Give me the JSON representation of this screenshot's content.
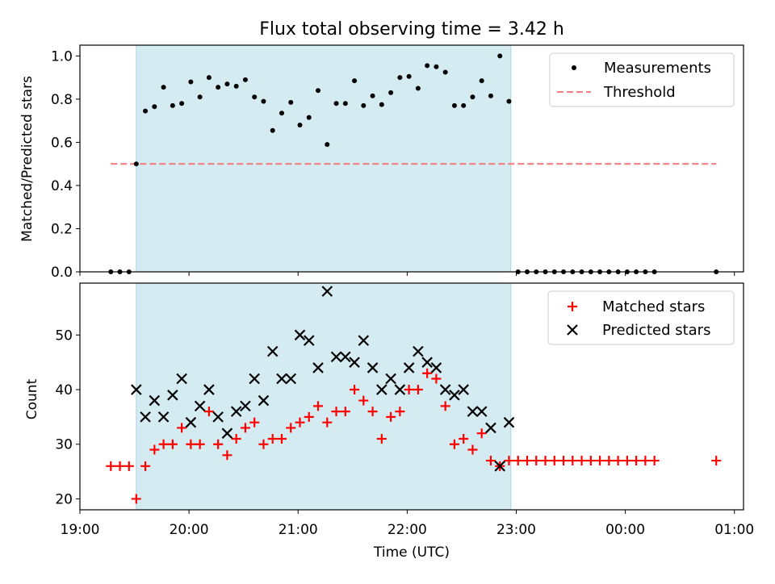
{
  "chart_data": [
    {
      "type": "scatter",
      "title": "Flux total observing time = 3.42 h",
      "xlabel": "",
      "ylabel": "Matched/Predicted stars",
      "xlim": [
        "19:00",
        "01:05"
      ],
      "ylim": [
        0,
        1.05
      ],
      "yticks": [
        "0.0",
        "0.2",
        "0.4",
        "0.6",
        "0.8",
        "1.0"
      ],
      "shaded_interval": {
        "start": "19:31",
        "end": "22:57",
        "color": "#d4ebf1"
      },
      "legend": {
        "position": "top-right",
        "entries": [
          "Measurements",
          "Threshold"
        ]
      },
      "threshold": {
        "name": "Threshold",
        "value": 0.5,
        "x_start": "19:17",
        "x_end": "00:50",
        "color": "#f08080",
        "style": "dashed"
      },
      "series": [
        {
          "name": "Measurements",
          "marker": "dot",
          "color": "#000000",
          "points": [
            [
              "19:17",
              0.0
            ],
            [
              "19:22",
              0.0
            ],
            [
              "19:27",
              0.0
            ],
            [
              "19:31",
              0.5
            ],
            [
              "19:36",
              0.745
            ],
            [
              "19:41",
              0.765
            ],
            [
              "19:46",
              0.855
            ],
            [
              "19:51",
              0.77
            ],
            [
              "19:56",
              0.78
            ],
            [
              "20:01",
              0.88
            ],
            [
              "20:06",
              0.81
            ],
            [
              "20:11",
              0.9
            ],
            [
              "20:16",
              0.855
            ],
            [
              "20:21",
              0.87
            ],
            [
              "20:26",
              0.86
            ],
            [
              "20:31",
              0.89
            ],
            [
              "20:36",
              0.81
            ],
            [
              "20:41",
              0.79
            ],
            [
              "20:46",
              0.655
            ],
            [
              "20:51",
              0.735
            ],
            [
              "20:56",
              0.785
            ],
            [
              "21:01",
              0.68
            ],
            [
              "21:06",
              0.715
            ],
            [
              "21:11",
              0.84
            ],
            [
              "21:16",
              0.59
            ],
            [
              "21:21",
              0.78
            ],
            [
              "21:26",
              0.78
            ],
            [
              "21:31",
              0.885
            ],
            [
              "21:36",
              0.77
            ],
            [
              "21:41",
              0.815
            ],
            [
              "21:46",
              0.775
            ],
            [
              "21:51",
              0.83
            ],
            [
              "21:56",
              0.9
            ],
            [
              "22:01",
              0.905
            ],
            [
              "22:06",
              0.85
            ],
            [
              "22:11",
              0.955
            ],
            [
              "22:16",
              0.95
            ],
            [
              "22:21",
              0.925
            ],
            [
              "22:26",
              0.77
            ],
            [
              "22:31",
              0.77
            ],
            [
              "22:36",
              0.81
            ],
            [
              "22:41",
              0.885
            ],
            [
              "22:46",
              0.815
            ],
            [
              "22:51",
              1.0
            ],
            [
              "22:56",
              0.79
            ],
            [
              "23:01",
              0.0
            ],
            [
              "23:06",
              0.0
            ],
            [
              "23:11",
              0.0
            ],
            [
              "23:16",
              0.0
            ],
            [
              "23:21",
              0.0
            ],
            [
              "23:26",
              0.0
            ],
            [
              "23:31",
              0.0
            ],
            [
              "23:36",
              0.0
            ],
            [
              "23:41",
              0.0
            ],
            [
              "23:46",
              0.0
            ],
            [
              "23:51",
              0.0
            ],
            [
              "23:56",
              0.0
            ],
            [
              "00:01",
              0.0
            ],
            [
              "00:06",
              0.0
            ],
            [
              "00:11",
              0.0
            ],
            [
              "00:16",
              0.0
            ],
            [
              "00:50",
              0.0
            ]
          ]
        }
      ]
    },
    {
      "type": "scatter",
      "title": "",
      "xlabel": "Time (UTC)",
      "ylabel": "Count",
      "xlim": [
        "19:00",
        "01:05"
      ],
      "ylim": [
        18,
        59.5
      ],
      "yticks": [
        "20",
        "30",
        "40",
        "50"
      ],
      "xticks": [
        "19:00",
        "20:00",
        "21:00",
        "22:00",
        "23:00",
        "00:00",
        "01:00"
      ],
      "shaded_interval": {
        "start": "19:31",
        "end": "22:57",
        "color": "#d4ebf1"
      },
      "legend": {
        "position": "top-right",
        "entries": [
          "Matched stars",
          "Predicted stars"
        ]
      },
      "series": [
        {
          "name": "Matched stars",
          "marker": "plus",
          "color": "#ff0000",
          "points": [
            [
              "19:17",
              26
            ],
            [
              "19:22",
              26
            ],
            [
              "19:27",
              26
            ],
            [
              "19:31",
              20
            ],
            [
              "19:36",
              26
            ],
            [
              "19:41",
              29
            ],
            [
              "19:46",
              30
            ],
            [
              "19:51",
              30
            ],
            [
              "19:56",
              33
            ],
            [
              "20:01",
              30
            ],
            [
              "20:06",
              30
            ],
            [
              "20:11",
              36
            ],
            [
              "20:16",
              30
            ],
            [
              "20:21",
              28
            ],
            [
              "20:26",
              31
            ],
            [
              "20:31",
              33
            ],
            [
              "20:36",
              34
            ],
            [
              "20:41",
              30
            ],
            [
              "20:46",
              31
            ],
            [
              "20:51",
              31
            ],
            [
              "20:56",
              33
            ],
            [
              "21:01",
              34
            ],
            [
              "21:06",
              35
            ],
            [
              "21:11",
              37
            ],
            [
              "21:16",
              34
            ],
            [
              "21:21",
              36
            ],
            [
              "21:26",
              36
            ],
            [
              "21:31",
              40
            ],
            [
              "21:36",
              38
            ],
            [
              "21:41",
              36
            ],
            [
              "21:46",
              31
            ],
            [
              "21:51",
              35
            ],
            [
              "21:56",
              36
            ],
            [
              "22:01",
              40
            ],
            [
              "22:06",
              40
            ],
            [
              "22:11",
              43
            ],
            [
              "22:16",
              42
            ],
            [
              "22:21",
              37
            ],
            [
              "22:26",
              30
            ],
            [
              "22:31",
              31
            ],
            [
              "22:36",
              29
            ],
            [
              "22:41",
              32
            ],
            [
              "22:46",
              27
            ],
            [
              "22:51",
              26
            ],
            [
              "22:56",
              27
            ],
            [
              "23:01",
              27
            ],
            [
              "23:06",
              27
            ],
            [
              "23:11",
              27
            ],
            [
              "23:16",
              27
            ],
            [
              "23:21",
              27
            ],
            [
              "23:26",
              27
            ],
            [
              "23:31",
              27
            ],
            [
              "23:36",
              27
            ],
            [
              "23:41",
              27
            ],
            [
              "23:46",
              27
            ],
            [
              "23:51",
              27
            ],
            [
              "23:56",
              27
            ],
            [
              "00:01",
              27
            ],
            [
              "00:06",
              27
            ],
            [
              "00:11",
              27
            ],
            [
              "00:16",
              27
            ],
            [
              "00:50",
              27
            ]
          ]
        },
        {
          "name": "Predicted stars",
          "marker": "x",
          "color": "#000000",
          "points": [
            [
              "19:31",
              40
            ],
            [
              "19:36",
              35
            ],
            [
              "19:41",
              38
            ],
            [
              "19:46",
              35
            ],
            [
              "19:51",
              39
            ],
            [
              "19:56",
              42
            ],
            [
              "20:01",
              34
            ],
            [
              "20:06",
              37
            ],
            [
              "20:11",
              40
            ],
            [
              "20:16",
              35
            ],
            [
              "20:21",
              32
            ],
            [
              "20:26",
              36
            ],
            [
              "20:31",
              37
            ],
            [
              "20:36",
              42
            ],
            [
              "20:41",
              38
            ],
            [
              "20:46",
              47
            ],
            [
              "20:51",
              42
            ],
            [
              "20:56",
              42
            ],
            [
              "21:01",
              50
            ],
            [
              "21:06",
              49
            ],
            [
              "21:11",
              44
            ],
            [
              "21:16",
              58
            ],
            [
              "21:21",
              46
            ],
            [
              "21:26",
              46
            ],
            [
              "21:31",
              45
            ],
            [
              "21:36",
              49
            ],
            [
              "21:41",
              44
            ],
            [
              "21:46",
              40
            ],
            [
              "21:51",
              42
            ],
            [
              "21:56",
              40
            ],
            [
              "22:01",
              44
            ],
            [
              "22:06",
              47
            ],
            [
              "22:11",
              45
            ],
            [
              "22:16",
              44
            ],
            [
              "22:21",
              40
            ],
            [
              "22:26",
              39
            ],
            [
              "22:31",
              40
            ],
            [
              "22:36",
              36
            ],
            [
              "22:41",
              36
            ],
            [
              "22:46",
              33
            ],
            [
              "22:51",
              26
            ],
            [
              "22:56",
              34
            ]
          ]
        }
      ]
    }
  ]
}
